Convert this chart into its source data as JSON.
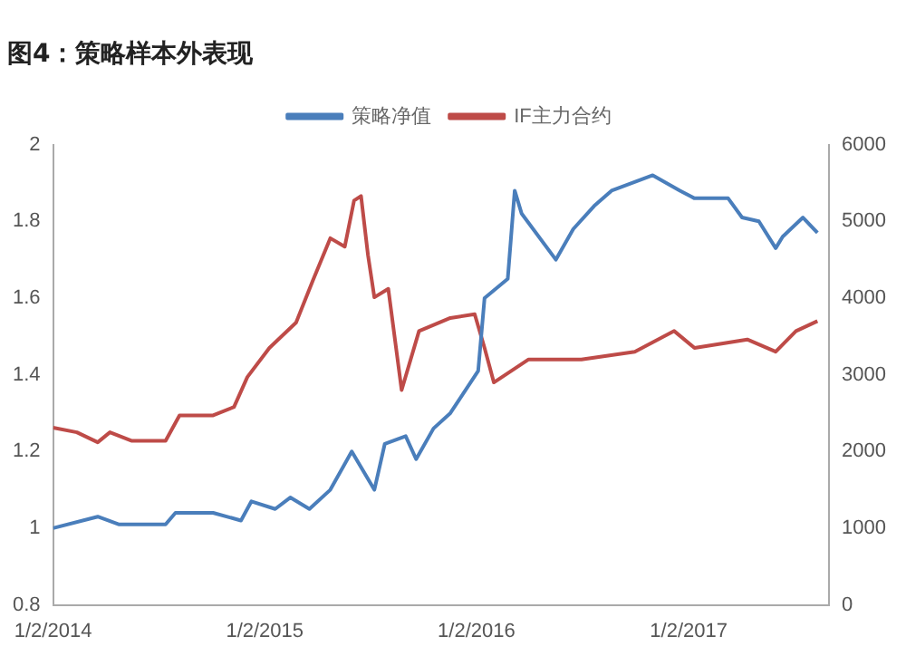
{
  "chart_data": {
    "type": "line",
    "title": "图4：策略样本外表现",
    "legend": "top",
    "grid": false,
    "marker": "none",
    "line_style": "solid",
    "xlim": [
      "2014-01-02",
      "2017-09-01"
    ],
    "xticks": [
      {
        "value": "2014-01-02",
        "label": "1/2/2014"
      },
      {
        "value": "2015-01-02",
        "label": "1/2/2015"
      },
      {
        "value": "2016-01-02",
        "label": "1/2/2016"
      },
      {
        "value": "2017-01-02",
        "label": "1/2/2017"
      }
    ],
    "ylim": [
      0.8,
      2
    ],
    "yticks": [
      0.8,
      1,
      1.2,
      1.4,
      1.6,
      1.8,
      2
    ],
    "y2lim": [
      0,
      6000
    ],
    "y2ticks": [
      0,
      1000,
      2000,
      3000,
      4000,
      5000,
      6000
    ],
    "series": [
      {
        "name": "策略净值",
        "color": "#4a7ebb",
        "x": [
          "2014-01-02",
          "2014-03-20",
          "2014-04-25",
          "2014-07-15",
          "2014-08-01",
          "2014-10-05",
          "2014-11-22",
          "2014-12-10",
          "2015-01-20",
          "2015-02-15",
          "2015-03-20",
          "2015-04-25",
          "2015-06-01",
          "2015-07-10",
          "2015-07-28",
          "2015-09-02",
          "2015-09-20",
          "2015-10-20",
          "2015-11-18",
          "2016-01-05",
          "2016-01-16",
          "2016-02-25",
          "2016-03-08",
          "2016-03-20",
          "2016-05-18",
          "2016-06-17",
          "2016-07-23",
          "2016-08-22",
          "2016-11-01",
          "2016-12-18",
          "2017-01-12",
          "2017-03-11",
          "2017-04-04",
          "2017-05-03",
          "2017-06-01",
          "2017-06-13",
          "2017-07-18",
          "2017-08-12"
        ],
        "values": [
          1.0,
          1.03,
          1.01,
          1.01,
          1.04,
          1.04,
          1.02,
          1.07,
          1.05,
          1.08,
          1.05,
          1.1,
          1.2,
          1.1,
          1.22,
          1.24,
          1.18,
          1.26,
          1.3,
          1.41,
          1.6,
          1.65,
          1.88,
          1.82,
          1.7,
          1.78,
          1.84,
          1.88,
          1.92,
          1.88,
          1.86,
          1.86,
          1.81,
          1.8,
          1.73,
          1.76,
          1.81,
          1.77
        ]
      },
      {
        "name": "IF主力合约",
        "color": "#be4b48",
        "axis": "y2",
        "x": [
          "2014-01-02",
          "2014-02-12",
          "2014-03-20",
          "2014-04-10",
          "2014-05-17",
          "2014-07-15",
          "2014-08-08",
          "2014-10-05",
          "2014-11-10",
          "2014-12-03",
          "2015-01-10",
          "2015-02-25",
          "2015-03-26",
          "2015-04-25",
          "2015-05-20",
          "2015-06-05",
          "2015-06-17",
          "2015-06-29",
          "2015-07-10",
          "2015-08-03",
          "2015-08-26",
          "2015-09-25",
          "2015-11-18",
          "2015-12-30",
          "2016-01-16",
          "2016-02-01",
          "2016-04-01",
          "2016-07-01",
          "2016-10-01",
          "2016-12-08",
          "2017-01-12",
          "2017-04-13",
          "2017-06-01",
          "2017-07-06",
          "2017-08-12"
        ],
        "values": [
          2310,
          2250,
          2120,
          2250,
          2140,
          2140,
          2470,
          2470,
          2580,
          2970,
          3350,
          3680,
          4230,
          4780,
          4670,
          5270,
          5330,
          4560,
          4010,
          4120,
          2800,
          3570,
          3740,
          3790,
          3350,
          2900,
          3200,
          3200,
          3300,
          3570,
          3350,
          3460,
          3300,
          3570,
          3700
        ]
      }
    ]
  }
}
